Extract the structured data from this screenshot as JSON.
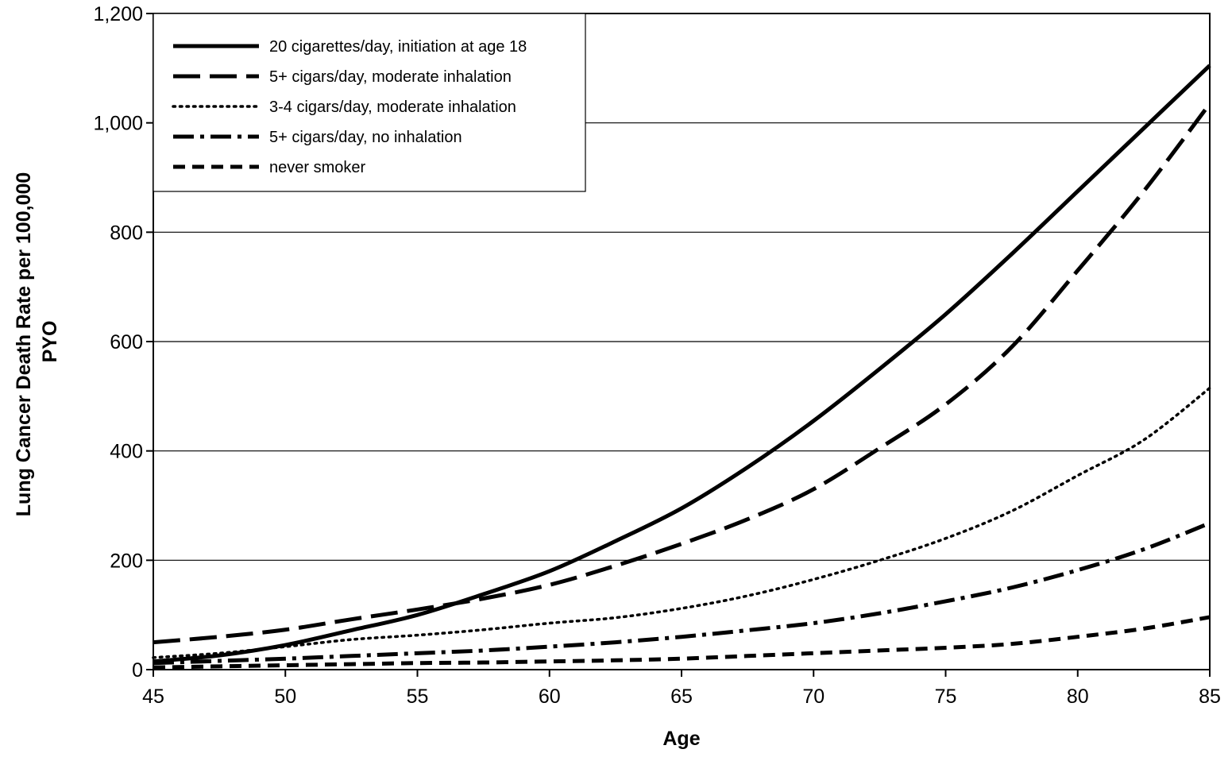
{
  "chart_data": {
    "type": "line",
    "title": "",
    "xlabel": "Age",
    "ylabel_lines": [
      "Lung Cancer Death Rate per 100,000",
      "PYO"
    ],
    "xlim": [
      45,
      85
    ],
    "ylim": [
      0,
      1200
    ],
    "x_ticks": [
      45,
      50,
      55,
      60,
      65,
      70,
      75,
      80,
      85
    ],
    "x_tick_labels": [
      "45",
      "50",
      "55",
      "60",
      "65",
      "70",
      "75",
      "80",
      "85"
    ],
    "y_ticks": [
      0,
      200,
      400,
      600,
      800,
      1000,
      1200
    ],
    "y_tick_labels": [
      "0",
      "200",
      "400",
      "600",
      "800",
      "1,000",
      "1,200"
    ],
    "grid": "horizontal",
    "legend_position": "top-left",
    "x": [
      45,
      47.5,
      50,
      52.5,
      55,
      57.5,
      60,
      62.5,
      65,
      67.5,
      70,
      72.5,
      75,
      77.5,
      80,
      82.5,
      85
    ],
    "series": [
      {
        "name": "20 cigarettes/day, initiation at age 18",
        "style": "solid",
        "values": [
          15,
          26,
          45,
          72,
          100,
          138,
          180,
          235,
          295,
          370,
          455,
          550,
          650,
          760,
          875,
          990,
          1105
        ]
      },
      {
        "name": "5+ cigars/day, moderate inhalation",
        "style": "longdash",
        "values": [
          50,
          60,
          73,
          92,
          110,
          130,
          155,
          190,
          230,
          275,
          330,
          405,
          485,
          590,
          730,
          875,
          1035
        ]
      },
      {
        "name": "3-4 cigars/day, moderate inhalation",
        "style": "dotted",
        "values": [
          22,
          30,
          42,
          55,
          63,
          73,
          85,
          95,
          112,
          135,
          165,
          200,
          240,
          290,
          355,
          420,
          515
        ]
      },
      {
        "name": "5+ cigars/day, no inhalation",
        "style": "dashdot",
        "values": [
          12,
          16,
          20,
          25,
          30,
          35,
          42,
          50,
          60,
          72,
          85,
          103,
          125,
          150,
          182,
          220,
          268
        ]
      },
      {
        "name": "never smoker",
        "style": "shortdash",
        "values": [
          4,
          6,
          8,
          10,
          12,
          13,
          15,
          17,
          20,
          25,
          30,
          35,
          40,
          47,
          60,
          75,
          96
        ]
      }
    ]
  }
}
